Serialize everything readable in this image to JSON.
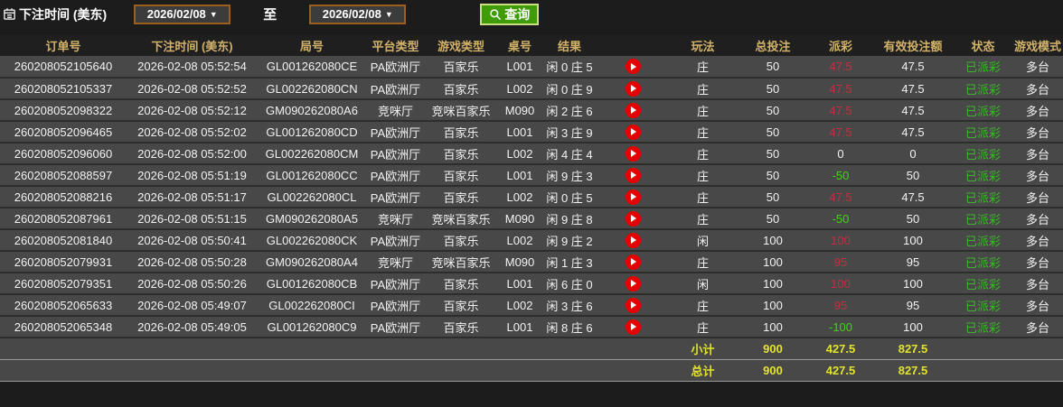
{
  "toolbar": {
    "title": "下注时间 (美东)",
    "date_from": "2026/02/08",
    "to_label": "至",
    "date_to": "2026/02/08",
    "query_label": "查询"
  },
  "table": {
    "columns": [
      "订单号",
      "下注时间 (美东)",
      "局号",
      "平台类型",
      "游戏类型",
      "桌号",
      "结果",
      "",
      "玩法",
      "总投注",
      "派彩",
      "有效投注额",
      "状态",
      "游戏模式"
    ],
    "rows": [
      {
        "order_no": "260208052105640",
        "bet_time": "2026-02-08 05:52:54",
        "round_no": "GL001262080CE",
        "platform": "PA欧洲厅",
        "game_type": "百家乐",
        "table_no": "L001",
        "result": "闲 0 庄 5",
        "play": "庄",
        "total_bet": "50",
        "payout": "47.5",
        "valid_bet": "47.5",
        "status": "已派彩",
        "mode": "多台"
      },
      {
        "order_no": "260208052105337",
        "bet_time": "2026-02-08 05:52:52",
        "round_no": "GL002262080CN",
        "platform": "PA欧洲厅",
        "game_type": "百家乐",
        "table_no": "L002",
        "result": "闲 0 庄 9",
        "play": "庄",
        "total_bet": "50",
        "payout": "47.5",
        "valid_bet": "47.5",
        "status": "已派彩",
        "mode": "多台"
      },
      {
        "order_no": "260208052098322",
        "bet_time": "2026-02-08 05:52:12",
        "round_no": "GM090262080A6",
        "platform": "竞咪厅",
        "game_type": "竞咪百家乐",
        "table_no": "M090",
        "result": "闲 2 庄 6",
        "play": "庄",
        "total_bet": "50",
        "payout": "47.5",
        "valid_bet": "47.5",
        "status": "已派彩",
        "mode": "多台"
      },
      {
        "order_no": "260208052096465",
        "bet_time": "2026-02-08 05:52:02",
        "round_no": "GL001262080CD",
        "platform": "PA欧洲厅",
        "game_type": "百家乐",
        "table_no": "L001",
        "result": "闲 3 庄 9",
        "play": "庄",
        "total_bet": "50",
        "payout": "47.5",
        "valid_bet": "47.5",
        "status": "已派彩",
        "mode": "多台"
      },
      {
        "order_no": "260208052096060",
        "bet_time": "2026-02-08 05:52:00",
        "round_no": "GL002262080CM",
        "platform": "PA欧洲厅",
        "game_type": "百家乐",
        "table_no": "L002",
        "result": "闲 4 庄 4",
        "play": "庄",
        "total_bet": "50",
        "payout": "0",
        "valid_bet": "0",
        "status": "已派彩",
        "mode": "多台"
      },
      {
        "order_no": "260208052088597",
        "bet_time": "2026-02-08 05:51:19",
        "round_no": "GL001262080CC",
        "platform": "PA欧洲厅",
        "game_type": "百家乐",
        "table_no": "L001",
        "result": "闲 9 庄 3",
        "play": "庄",
        "total_bet": "50",
        "payout": "-50",
        "valid_bet": "50",
        "status": "已派彩",
        "mode": "多台"
      },
      {
        "order_no": "260208052088216",
        "bet_time": "2026-02-08 05:51:17",
        "round_no": "GL002262080CL",
        "platform": "PA欧洲厅",
        "game_type": "百家乐",
        "table_no": "L002",
        "result": "闲 0 庄 5",
        "play": "庄",
        "total_bet": "50",
        "payout": "47.5",
        "valid_bet": "47.5",
        "status": "已派彩",
        "mode": "多台"
      },
      {
        "order_no": "260208052087961",
        "bet_time": "2026-02-08 05:51:15",
        "round_no": "GM090262080A5",
        "platform": "竞咪厅",
        "game_type": "竞咪百家乐",
        "table_no": "M090",
        "result": "闲 9 庄 8",
        "play": "庄",
        "total_bet": "50",
        "payout": "-50",
        "valid_bet": "50",
        "status": "已派彩",
        "mode": "多台"
      },
      {
        "order_no": "260208052081840",
        "bet_time": "2026-02-08 05:50:41",
        "round_no": "GL002262080CK",
        "platform": "PA欧洲厅",
        "game_type": "百家乐",
        "table_no": "L002",
        "result": "闲 9 庄 2",
        "play": "闲",
        "total_bet": "100",
        "payout": "100",
        "valid_bet": "100",
        "status": "已派彩",
        "mode": "多台"
      },
      {
        "order_no": "260208052079931",
        "bet_time": "2026-02-08 05:50:28",
        "round_no": "GM090262080A4",
        "platform": "竞咪厅",
        "game_type": "竞咪百家乐",
        "table_no": "M090",
        "result": "闲 1 庄 3",
        "play": "庄",
        "total_bet": "100",
        "payout": "95",
        "valid_bet": "95",
        "status": "已派彩",
        "mode": "多台"
      },
      {
        "order_no": "260208052079351",
        "bet_time": "2026-02-08 05:50:26",
        "round_no": "GL001262080CB",
        "platform": "PA欧洲厅",
        "game_type": "百家乐",
        "table_no": "L001",
        "result": "闲 6 庄 0",
        "play": "闲",
        "total_bet": "100",
        "payout": "100",
        "valid_bet": "100",
        "status": "已派彩",
        "mode": "多台"
      },
      {
        "order_no": "260208052065633",
        "bet_time": "2026-02-08 05:49:07",
        "round_no": "GL002262080CI",
        "platform": "PA欧洲厅",
        "game_type": "百家乐",
        "table_no": "L002",
        "result": "闲 3 庄 6",
        "play": "庄",
        "total_bet": "100",
        "payout": "95",
        "valid_bet": "95",
        "status": "已派彩",
        "mode": "多台"
      },
      {
        "order_no": "260208052065348",
        "bet_time": "2026-02-08 05:49:05",
        "round_no": "GL001262080C9",
        "platform": "PA欧洲厅",
        "game_type": "百家乐",
        "table_no": "L001",
        "result": "闲 8 庄 6",
        "play": "庄",
        "total_bet": "100",
        "payout": "-100",
        "valid_bet": "100",
        "status": "已派彩",
        "mode": "多台"
      }
    ],
    "subtotal": {
      "label": "小计",
      "total_bet": "900",
      "payout": "427.5",
      "valid_bet": "827.5"
    },
    "total": {
      "label": "总计",
      "total_bet": "900",
      "payout": "427.5",
      "valid_bet": "827.5"
    }
  },
  "colors": {
    "header_gold": "#d2b26a",
    "payout_win_red": "#c22f40",
    "payout_loss_green": "#42d413",
    "status_green": "#3cb42c",
    "totals_yellow": "#e3e32e",
    "query_button_green": "#3f9b06",
    "date_border_brown": "#9c5f1e",
    "replay_red": "#e60000"
  }
}
